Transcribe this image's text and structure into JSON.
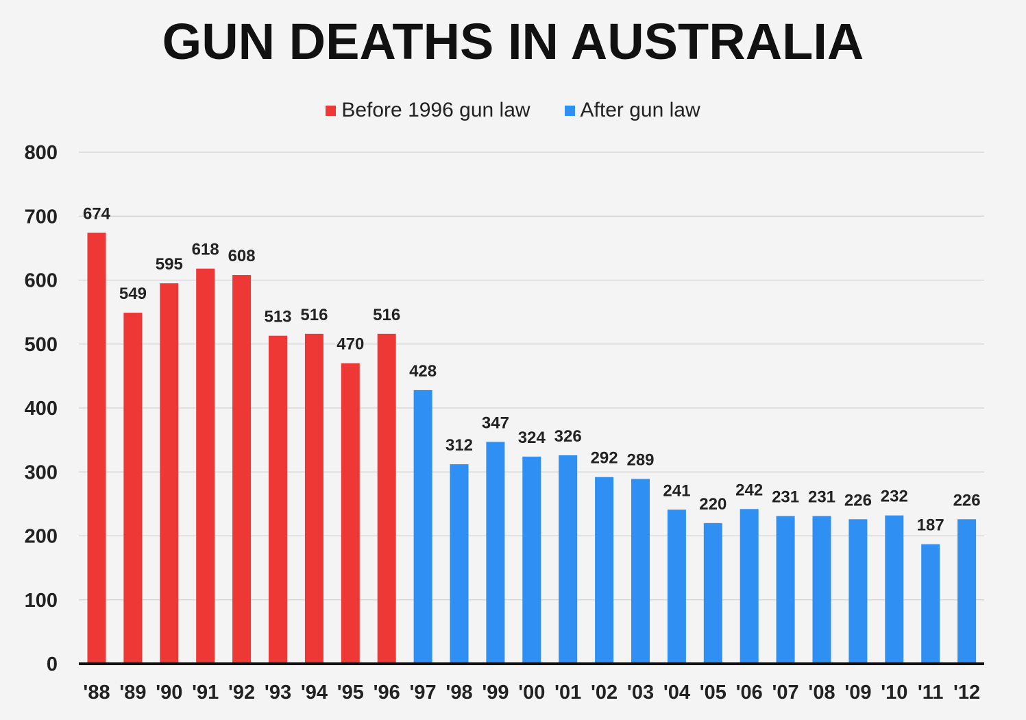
{
  "chart_data": {
    "type": "bar",
    "title": "GUN DEATHS IN AUSTRALIA",
    "xlabel": "",
    "ylabel": "",
    "ylim": [
      0,
      800
    ],
    "yticks": [
      0,
      100,
      200,
      300,
      400,
      500,
      600,
      700,
      800
    ],
    "grid": true,
    "legend_position": "top-center",
    "categories": [
      "'88",
      "'89",
      "'90",
      "'91",
      "'92",
      "'93",
      "'94",
      "'95",
      "'96",
      "'97",
      "'98",
      "'99",
      "'00",
      "'01",
      "'02",
      "'03",
      "'04",
      "'05",
      "'06",
      "'07",
      "'08",
      "'09",
      "'10",
      "'11",
      "'12"
    ],
    "values": [
      674,
      549,
      595,
      618,
      608,
      513,
      516,
      470,
      516,
      428,
      312,
      347,
      324,
      326,
      292,
      289,
      241,
      220,
      242,
      231,
      231,
      226,
      232,
      187,
      226
    ],
    "series": [
      {
        "name": "Before 1996 gun law",
        "color": "#ee3835",
        "categories": [
          "'88",
          "'89",
          "'90",
          "'91",
          "'92",
          "'93",
          "'94",
          "'95",
          "'96"
        ]
      },
      {
        "name": "After gun law",
        "color": "#2f8ff2",
        "categories": [
          "'97",
          "'98",
          "'99",
          "'00",
          "'01",
          "'02",
          "'03",
          "'04",
          "'05",
          "'06",
          "'07",
          "'08",
          "'09",
          "'10",
          "'11",
          "'12"
        ]
      }
    ]
  }
}
